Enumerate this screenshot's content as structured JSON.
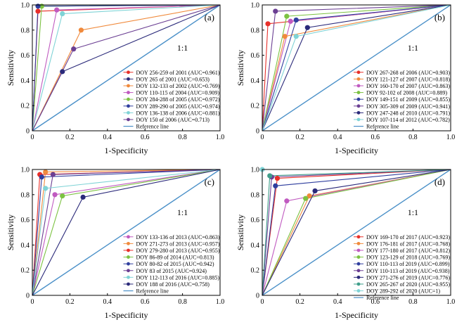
{
  "axis": {
    "xlabel": "1-Specificity",
    "ylabel": "Sensitivity",
    "ticks": [
      "0",
      "0.2",
      "0.4",
      "0.6",
      "0.8",
      "1.0"
    ],
    "diag_label": "1:1",
    "reference_label": "Reference line",
    "reference_color": "#4a90c8"
  },
  "chart_data": [
    {
      "type": "line",
      "panel_label": "(a)",
      "xlim": [
        0,
        1
      ],
      "ylim": [
        0,
        1
      ],
      "grid": false,
      "legend": "bottom-right",
      "series": [
        {
          "name": "DOY 256-259 of 2001 (AUC=0.961)",
          "color": "#e8302a",
          "point": [
            0.03,
            0.95
          ]
        },
        {
          "name": "DOY 265 of 2001 (AUC=0.653)",
          "color": "#2b2a7a",
          "point": [
            0.16,
            0.47
          ]
        },
        {
          "name": "DOY 132-133 of 2002 (AUC=0.769)",
          "color": "#f08a3c",
          "point": [
            0.26,
            0.8
          ]
        },
        {
          "name": "DOY 110-115 of 2004 (AUC=0.909)",
          "color": "#c05ac0",
          "point": [
            0.13,
            0.96
          ]
        },
        {
          "name": "DOY 284-288 of 2005 (AUC=0.972)",
          "color": "#7cc242",
          "point": [
            0.05,
            0.99
          ]
        },
        {
          "name": "DOY 289-290 of 2005 (AUC=0.974)",
          "color": "#2f3e9e",
          "point": [
            0.03,
            0.99
          ]
        },
        {
          "name": "DOY 136-138 of 2006 (AUC=0.881)",
          "color": "#7fd3d6",
          "point": [
            0.16,
            0.93
          ]
        },
        {
          "name": "DOY 150 of 2006 (AUC=0.713)",
          "color": "#6b3f93",
          "point": [
            0.22,
            0.65
          ]
        }
      ]
    },
    {
      "type": "line",
      "panel_label": "(b)",
      "xlim": [
        0,
        1
      ],
      "ylim": [
        0,
        1
      ],
      "grid": false,
      "legend": "bottom-right",
      "series": [
        {
          "name": "DOY 267-268 of 2006 (AUC=0.903)",
          "color": "#e8302a",
          "point": [
            0.03,
            0.85
          ]
        },
        {
          "name": "DOY 121-127 of 2007 (AUC=0.818)",
          "color": "#f08a3c",
          "point": [
            0.12,
            0.75
          ]
        },
        {
          "name": "DOY 160-170 of 2007 (AUC=0.863)",
          "color": "#c05ac0",
          "point": [
            0.15,
            0.87
          ]
        },
        {
          "name": "DOY 92-102 of 2008 (AUC=0.889)",
          "color": "#7cc242",
          "point": [
            0.13,
            0.91
          ]
        },
        {
          "name": "DOY 149-151 of 2009 (AUC=0.855)",
          "color": "#2f3e9e",
          "point": [
            0.18,
            0.88
          ]
        },
        {
          "name": "DOY 305-309 of 2009 (AUC=0.941)",
          "color": "#6b3f93",
          "point": [
            0.07,
            0.95
          ]
        },
        {
          "name": "DOY 247-248 of 2010 (AUC=0.791)",
          "color": "#2b2a7a",
          "point": [
            0.24,
            0.82
          ]
        },
        {
          "name": "DOY 107-114 of 2012 (AUC=0.782)",
          "color": "#7fd3d6",
          "point": [
            0.18,
            0.75
          ]
        }
      ]
    },
    {
      "type": "line",
      "panel_label": "(c)",
      "xlim": [
        0,
        1
      ],
      "ylim": [
        0,
        1
      ],
      "grid": false,
      "legend": "bottom-right",
      "series": [
        {
          "name": "DOY 133-136 of 2013 (AUC=0.863)",
          "color": "#c05ac0",
          "point": [
            0.12,
            0.8
          ]
        },
        {
          "name": "DOY 271-273 of 2013 (AUC=0.957)",
          "color": "#f08a3c",
          "point": [
            0.07,
            0.98
          ]
        },
        {
          "name": "DOY 279-280 of 2013 (AUC=0.955)",
          "color": "#e8302a",
          "point": [
            0.04,
            0.96
          ]
        },
        {
          "name": "DOY 86-89 of 2014 (AUC=0.813)",
          "color": "#7cc242",
          "point": [
            0.16,
            0.79
          ]
        },
        {
          "name": "DOY 80-82 of 2015 (AUC=0.942)",
          "color": "#2f3e9e",
          "point": [
            0.05,
            0.94
          ]
        },
        {
          "name": "DOY 83 of 2015 (AUC=0.924)",
          "color": "#6b3f93",
          "point": [
            0.11,
            0.96
          ]
        },
        {
          "name": "DOY 112-113 of 2016 (AUC=0.885)",
          "color": "#7fd3d6",
          "point": [
            0.07,
            0.85
          ]
        },
        {
          "name": "DOY 188 of 2016 (AUC=0.758)",
          "color": "#2b2a7a",
          "point": [
            0.27,
            0.78
          ]
        }
      ]
    },
    {
      "type": "line",
      "panel_label": "(d)",
      "xlim": [
        0,
        1
      ],
      "ylim": [
        0,
        1
      ],
      "grid": false,
      "legend": "bottom-right",
      "series": [
        {
          "name": "DOY 169-170 of 2017 (AUC=0.923)",
          "color": "#e8302a",
          "point": [
            0.08,
            0.93
          ]
        },
        {
          "name": "DOY 176-181 of 2017 (AUC=0.768)",
          "color": "#f08a3c",
          "point": [
            0.25,
            0.79
          ]
        },
        {
          "name": "DOY 177-180 of 2017 (AUC=0.812)",
          "color": "#c05ac0",
          "point": [
            0.13,
            0.75
          ]
        },
        {
          "name": "DOY 123-129 of 2018 (AUC=0.769)",
          "color": "#7cc242",
          "point": [
            0.23,
            0.77
          ]
        },
        {
          "name": "DOY 110-113 of 2019 (AUC=0.899)",
          "color": "#2f3e9e",
          "point": [
            0.07,
            0.87
          ]
        },
        {
          "name": "DOY 110-113 of 2019 (AUC=0.938)",
          "color": "#6b3f93",
          "point": [
            0.05,
            0.94
          ]
        },
        {
          "name": "DOY 271-276 of 2019 (AUC=0.776)",
          "color": "#2b2a7a",
          "point": [
            0.28,
            0.83
          ]
        },
        {
          "name": "DOY 265-267 of 2020 (AUC=0.955)",
          "color": "#3f9e8a",
          "point": [
            0.04,
            0.95
          ]
        },
        {
          "name": "DOY 289-292 of 2020 (AUC=1)",
          "color": "#7fd3d6",
          "point": [
            0.0,
            1.0
          ]
        }
      ]
    }
  ]
}
